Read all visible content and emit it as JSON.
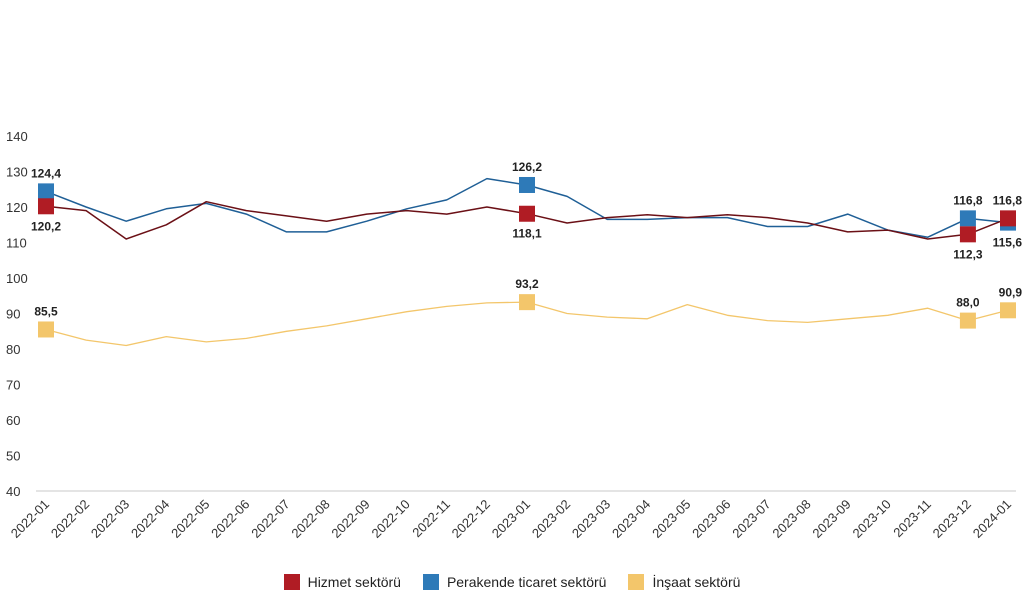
{
  "chart_data": {
    "type": "line",
    "title": "",
    "xlabel": "",
    "ylabel": "",
    "ylim": [
      40,
      140
    ],
    "yticks": [
      40,
      50,
      60,
      70,
      80,
      90,
      100,
      110,
      120,
      130,
      140
    ],
    "categories": [
      "2022-01",
      "2022-02",
      "2022-03",
      "2022-04",
      "2022-05",
      "2022-06",
      "2022-07",
      "2022-08",
      "2022-09",
      "2022-10",
      "2022-11",
      "2022-12",
      "2023-01",
      "2023-02",
      "2023-03",
      "2023-04",
      "2023-05",
      "2023-06",
      "2023-07",
      "2023-08",
      "2023-09",
      "2023-10",
      "2023-11",
      "2023-12",
      "2024-01"
    ],
    "legend_position": "bottom",
    "series": [
      {
        "name": "Hizmet sektörü",
        "color": "#b01c24",
        "values": [
          120.2,
          119.0,
          111.0,
          115.0,
          121.5,
          119.0,
          117.5,
          116.0,
          118.0,
          119.0,
          118.0,
          120.0,
          118.1,
          115.5,
          117.0,
          117.8,
          117.0,
          117.8,
          117.0,
          115.5,
          113.0,
          113.5,
          111.0,
          112.3,
          116.8
        ],
        "labels": [
          {
            "index": 0,
            "text": "120,2",
            "pos": "below"
          },
          {
            "index": 12,
            "text": "118,1",
            "pos": "below"
          },
          {
            "index": 23,
            "text": "112,3",
            "pos": "below"
          },
          {
            "index": 24,
            "text": "116,8",
            "pos": "above"
          }
        ]
      },
      {
        "name": "Perakende ticaret sektörü",
        "color": "#2e7ab8",
        "values": [
          124.4,
          120.0,
          116.0,
          119.5,
          121.0,
          118.0,
          113.0,
          113.0,
          116.0,
          119.5,
          122.0,
          128.0,
          126.2,
          123.0,
          116.5,
          116.5,
          117.0,
          117.0,
          114.5,
          114.5,
          118.0,
          113.5,
          111.5,
          116.8,
          115.6
        ],
        "labels": [
          {
            "index": 0,
            "text": "124,4",
            "pos": "above"
          },
          {
            "index": 12,
            "text": "126,2",
            "pos": "above"
          },
          {
            "index": 23,
            "text": "116,8",
            "pos": "above"
          },
          {
            "index": 24,
            "text": "115,6",
            "pos": "below"
          }
        ]
      },
      {
        "name": "İnşaat sektörü",
        "color": "#f3c66b",
        "values": [
          85.5,
          82.5,
          81.0,
          83.5,
          82.0,
          83.0,
          85.0,
          86.5,
          88.5,
          90.5,
          92.0,
          93.0,
          93.2,
          90.0,
          89.0,
          88.5,
          92.5,
          89.5,
          88.0,
          87.5,
          88.5,
          89.5,
          91.5,
          88.0,
          90.9
        ],
        "labels": [
          {
            "index": 0,
            "text": "85,5",
            "pos": "above"
          },
          {
            "index": 12,
            "text": "93,2",
            "pos": "above"
          },
          {
            "index": 23,
            "text": "88,0",
            "pos": "above"
          },
          {
            "index": 24,
            "text": "90,9",
            "pos": "above"
          }
        ]
      }
    ]
  }
}
